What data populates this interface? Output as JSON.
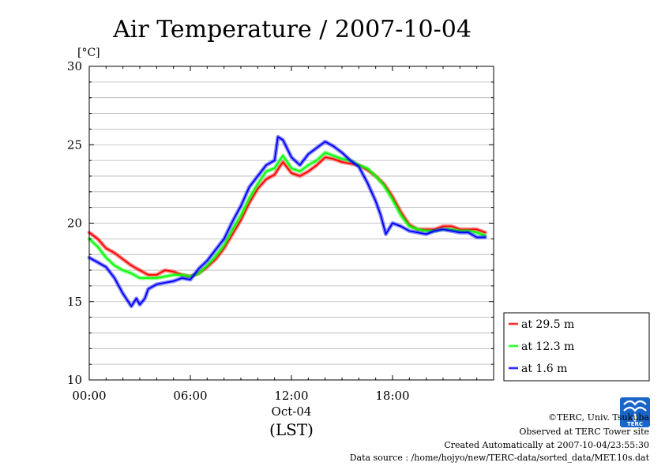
{
  "chart_data": {
    "type": "line",
    "title": "Air Temperature / 2007-10-04",
    "ylabel": "[°C]",
    "xlabel_date": "Oct-04",
    "xlabel_tz": "(LST)",
    "ylim": [
      10,
      30
    ],
    "xlim_hours": [
      0,
      24
    ],
    "yticks": [
      "30",
      "25",
      "20",
      "15",
      "10"
    ],
    "xticks": [
      "00:00",
      "06:00",
      "12:00",
      "18:00"
    ],
    "grid": true,
    "legend_position": "right-bottom",
    "series": [
      {
        "name": "at 29.5 m",
        "color": "#ff0000",
        "points": [
          [
            0,
            19.4
          ],
          [
            0.5,
            19.0
          ],
          [
            1,
            18.4
          ],
          [
            1.5,
            18.1
          ],
          [
            2,
            17.7
          ],
          [
            2.5,
            17.3
          ],
          [
            3,
            17.0
          ],
          [
            3.5,
            16.7
          ],
          [
            4,
            16.7
          ],
          [
            4.5,
            17.0
          ],
          [
            5,
            16.9
          ],
          [
            5.5,
            16.7
          ],
          [
            6,
            16.6
          ],
          [
            6.5,
            16.8
          ],
          [
            7,
            17.2
          ],
          [
            7.5,
            17.7
          ],
          [
            8,
            18.4
          ],
          [
            8.5,
            19.3
          ],
          [
            9,
            20.2
          ],
          [
            9.5,
            21.3
          ],
          [
            10,
            22.2
          ],
          [
            10.5,
            22.8
          ],
          [
            11,
            23.1
          ],
          [
            11.3,
            23.6
          ],
          [
            11.5,
            23.9
          ],
          [
            12,
            23.2
          ],
          [
            12.5,
            23.0
          ],
          [
            13,
            23.3
          ],
          [
            13.5,
            23.7
          ],
          [
            14,
            24.2
          ],
          [
            14.5,
            24.1
          ],
          [
            15,
            23.9
          ],
          [
            15.5,
            23.8
          ],
          [
            16,
            23.7
          ],
          [
            16.5,
            23.4
          ],
          [
            17,
            23.0
          ],
          [
            17.5,
            22.5
          ],
          [
            18,
            21.7
          ],
          [
            18.5,
            20.7
          ],
          [
            19,
            19.9
          ],
          [
            19.5,
            19.6
          ],
          [
            20,
            19.6
          ],
          [
            20.5,
            19.6
          ],
          [
            21,
            19.8
          ],
          [
            21.5,
            19.8
          ],
          [
            22,
            19.6
          ],
          [
            22.5,
            19.6
          ],
          [
            23,
            19.6
          ],
          [
            23.5,
            19.4
          ]
        ]
      },
      {
        "name": "at 12.3 m",
        "color": "#00ff00",
        "points": [
          [
            0,
            19.0
          ],
          [
            0.5,
            18.5
          ],
          [
            1,
            17.8
          ],
          [
            1.5,
            17.3
          ],
          [
            2,
            17.0
          ],
          [
            2.5,
            16.8
          ],
          [
            3,
            16.5
          ],
          [
            3.5,
            16.5
          ],
          [
            4,
            16.5
          ],
          [
            4.5,
            16.6
          ],
          [
            5,
            16.7
          ],
          [
            5.5,
            16.7
          ],
          [
            6,
            16.6
          ],
          [
            6.5,
            16.8
          ],
          [
            7,
            17.3
          ],
          [
            7.5,
            17.9
          ],
          [
            8,
            18.6
          ],
          [
            8.5,
            19.6
          ],
          [
            9,
            20.5
          ],
          [
            9.5,
            21.6
          ],
          [
            10,
            22.5
          ],
          [
            10.5,
            23.3
          ],
          [
            11,
            23.5
          ],
          [
            11.3,
            24.0
          ],
          [
            11.5,
            24.3
          ],
          [
            12,
            23.5
          ],
          [
            12.5,
            23.3
          ],
          [
            13,
            23.7
          ],
          [
            13.5,
            24.0
          ],
          [
            14,
            24.5
          ],
          [
            14.5,
            24.3
          ],
          [
            15,
            24.1
          ],
          [
            15.5,
            24.0
          ],
          [
            16,
            23.7
          ],
          [
            16.5,
            23.5
          ],
          [
            17,
            23.0
          ],
          [
            17.5,
            22.4
          ],
          [
            18,
            21.5
          ],
          [
            18.5,
            20.5
          ],
          [
            19,
            19.8
          ],
          [
            19.5,
            19.6
          ],
          [
            20,
            19.5
          ],
          [
            20.5,
            19.5
          ],
          [
            21,
            19.6
          ],
          [
            21.5,
            19.6
          ],
          [
            22,
            19.5
          ],
          [
            22.5,
            19.5
          ],
          [
            23,
            19.4
          ],
          [
            23.5,
            19.2
          ]
        ]
      },
      {
        "name": "at 1.6 m",
        "color": "#0000ff",
        "points": [
          [
            0,
            17.8
          ],
          [
            0.5,
            17.5
          ],
          [
            1,
            17.2
          ],
          [
            1.5,
            16.5
          ],
          [
            2,
            15.5
          ],
          [
            2.5,
            14.7
          ],
          [
            2.8,
            15.2
          ],
          [
            3,
            14.8
          ],
          [
            3.3,
            15.2
          ],
          [
            3.5,
            15.8
          ],
          [
            4,
            16.1
          ],
          [
            4.5,
            16.2
          ],
          [
            5,
            16.3
          ],
          [
            5.5,
            16.5
          ],
          [
            6,
            16.4
          ],
          [
            6.5,
            17.1
          ],
          [
            7,
            17.6
          ],
          [
            7.5,
            18.3
          ],
          [
            8,
            19.0
          ],
          [
            8.5,
            20.1
          ],
          [
            9,
            21.1
          ],
          [
            9.5,
            22.3
          ],
          [
            10,
            23.0
          ],
          [
            10.5,
            23.7
          ],
          [
            11,
            24.0
          ],
          [
            11.2,
            25.5
          ],
          [
            11.5,
            25.3
          ],
          [
            12,
            24.2
          ],
          [
            12.5,
            23.7
          ],
          [
            13,
            24.4
          ],
          [
            13.5,
            24.8
          ],
          [
            14,
            25.2
          ],
          [
            14.5,
            24.9
          ],
          [
            15,
            24.5
          ],
          [
            15.5,
            24.0
          ],
          [
            16,
            23.6
          ],
          [
            16.5,
            22.6
          ],
          [
            17,
            21.4
          ],
          [
            17.3,
            20.5
          ],
          [
            17.6,
            19.3
          ],
          [
            18,
            20.0
          ],
          [
            18.5,
            19.8
          ],
          [
            19,
            19.5
          ],
          [
            19.5,
            19.4
          ],
          [
            20,
            19.3
          ],
          [
            20.5,
            19.5
          ],
          [
            21,
            19.6
          ],
          [
            21.5,
            19.5
          ],
          [
            22,
            19.4
          ],
          [
            22.5,
            19.4
          ],
          [
            23,
            19.1
          ],
          [
            23.5,
            19.1
          ]
        ]
      }
    ]
  },
  "credits": {
    "line1": "©TERC, Univ. Tsukuba",
    "line2": "Observed at TERC Tower site",
    "line3": "Created Automatically at 2007-10-04/23:55:30",
    "line4": "Data source : /home/hojyo/new/TERC-data/sorted_data/MET.10s.dat",
    "logo_text": "TERC"
  }
}
